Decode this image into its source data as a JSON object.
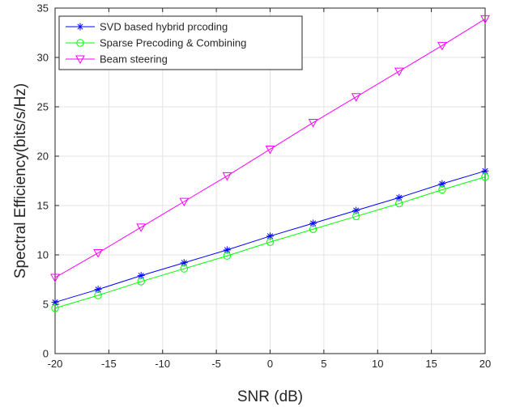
{
  "chart_data": {
    "type": "line",
    "title": "",
    "xlabel": "SNR (dB)",
    "ylabel": "Spectral Efficiency(bits/s/Hz)",
    "xlim": [
      -20,
      20
    ],
    "ylim": [
      0,
      35
    ],
    "x_ticks": [
      -20,
      -15,
      -10,
      -5,
      0,
      5,
      10,
      15,
      20
    ],
    "y_ticks": [
      0,
      5,
      10,
      15,
      20,
      25,
      30,
      35
    ],
    "grid": true,
    "legend_position": "top-left",
    "x": [
      -20,
      -16,
      -12,
      -8,
      -4,
      0,
      4,
      8,
      12,
      16,
      20
    ],
    "series": [
      {
        "name": "SVD based hybrid prcoding",
        "color": "#0000ff",
        "marker": "asterisk",
        "values": [
          5.2,
          6.5,
          7.9,
          9.2,
          10.5,
          11.9,
          13.2,
          14.5,
          15.8,
          17.2,
          18.5
        ]
      },
      {
        "name": "Sparse Precoding & Combining",
        "color": "#00ff00",
        "marker": "circle",
        "values": [
          4.6,
          5.9,
          7.3,
          8.6,
          9.9,
          11.3,
          12.6,
          13.9,
          15.2,
          16.6,
          17.9
        ]
      },
      {
        "name": "Beam steering",
        "color": "#ff00ff",
        "marker": "triangle-down",
        "values": [
          7.7,
          10.2,
          12.8,
          15.4,
          18.0,
          20.7,
          23.4,
          26.0,
          28.6,
          31.2,
          33.9
        ]
      }
    ]
  }
}
